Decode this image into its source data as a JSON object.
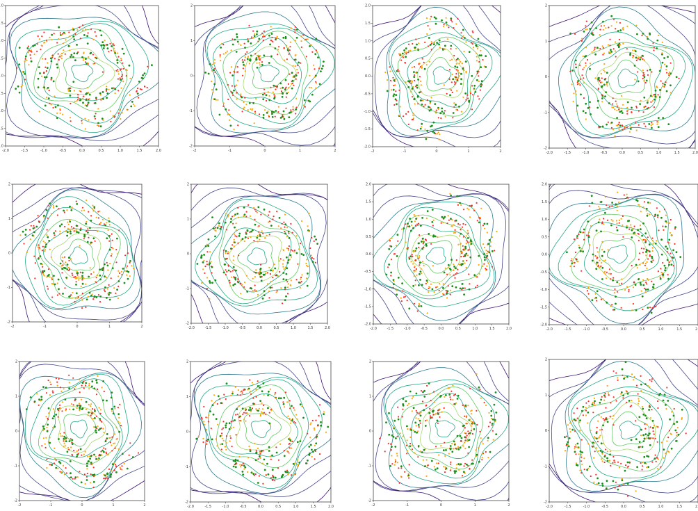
{
  "colors": {
    "real_points": "#ff2a2a",
    "generated_points_a": "#ffa500",
    "generated_points_b": "#1a8f1a",
    "contour_levels": [
      "#3b0f70",
      "#414487",
      "#2a788e",
      "#22a884",
      "#5ec962",
      "#a6d96a",
      "#fde725"
    ]
  },
  "chart_data": [
    {
      "type": "scatter",
      "panel": "r1c1",
      "title": "",
      "xlabel": "",
      "ylabel": "",
      "contours": true,
      "grid": false,
      "xlim": [
        -2.0,
        2.0
      ],
      "ylim": [
        -2.0,
        2.0
      ],
      "xticks": [
        "-2.0",
        "-1.5",
        "-1.0",
        "-0.5",
        "0.0",
        "0.5",
        "1.0",
        "1.5",
        "2.0"
      ],
      "yticks": [
        "-2.0",
        "-1.5",
        "-1.0",
        "-0.5",
        "0.0",
        "0.5",
        "1.0",
        "1.5",
        "2.0"
      ],
      "series": [
        {
          "marker": "real_points"
        },
        {
          "marker": "generated_points_a"
        },
        {
          "marker": "generated_points_b",
          "note_shape": "concentrated arc upper right"
        }
      ]
    },
    {
      "type": "scatter",
      "panel": "r1c2",
      "title": "",
      "xlabel": "",
      "ylabel": "",
      "contours": true,
      "grid": false,
      "xlim": [
        -2.0,
        2.0
      ],
      "ylim": [
        -2.0,
        2.0
      ],
      "xticks": [
        "-2",
        "-1",
        "0",
        "1",
        "2"
      ],
      "yticks": [
        "-2",
        "-1",
        "0",
        "1",
        "2"
      ]
    },
    {
      "type": "scatter",
      "panel": "r1c3",
      "title": "",
      "xlabel": "",
      "ylabel": "",
      "contours": true,
      "grid": false,
      "xlim": [
        -2.0,
        2.0
      ],
      "ylim": [
        -2.0,
        2.0
      ],
      "xticks": [
        "-2",
        "-1",
        "0",
        "1",
        "2"
      ],
      "yticks": [
        "-2.0",
        "-1.5",
        "-1.0",
        "-0.5",
        "0.0",
        "0.5",
        "1.0",
        "1.5",
        "2.0"
      ]
    },
    {
      "type": "scatter",
      "panel": "r1c4",
      "title": "",
      "xlabel": "",
      "ylabel": "",
      "contours": true,
      "grid": false,
      "xlim": [
        -2.0,
        2.0
      ],
      "ylim": [
        -2.0,
        2.0
      ],
      "xticks": [
        "-2.0",
        "-1.5",
        "-1.0",
        "-0.5",
        "0.0",
        "0.5",
        "1.0",
        "1.5",
        "2.0"
      ],
      "yticks": [
        "-2",
        "-1",
        "0",
        "1",
        "2"
      ]
    },
    {
      "type": "scatter",
      "panel": "r2c1",
      "title": "",
      "xlabel": "",
      "ylabel": "",
      "contours": true,
      "grid": false,
      "xlim": [
        -2.0,
        2.0
      ],
      "ylim": [
        -2.0,
        2.0
      ],
      "xticks": [
        "-2",
        "-1",
        "0",
        "1",
        "2"
      ],
      "yticks": [
        "-2",
        "-1",
        "0",
        "1",
        "2"
      ]
    },
    {
      "type": "scatter",
      "panel": "r2c2",
      "title": "",
      "xlabel": "",
      "ylabel": "",
      "contours": true,
      "grid": false,
      "xlim": [
        -2.0,
        2.0
      ],
      "ylim": [
        -2.0,
        2.0
      ],
      "xticks": [
        "-2.0",
        "-1.5",
        "-1.0",
        "-0.5",
        "0.0",
        "0.5",
        "1.0",
        "1.5",
        "2.0"
      ],
      "yticks": [
        "-2",
        "-1",
        "0",
        "1",
        "2"
      ]
    },
    {
      "type": "scatter",
      "panel": "r2c3",
      "title": "",
      "xlabel": "",
      "ylabel": "",
      "contours": true,
      "grid": false,
      "xlim": [
        -2.0,
        2.0
      ],
      "ylim": [
        -2.0,
        2.0
      ],
      "xticks": [
        "-2.0",
        "-1.5",
        "-1.0",
        "-0.5",
        "0.0",
        "0.5",
        "1.0",
        "1.5",
        "2.0"
      ],
      "yticks": [
        "-2.0",
        "-1.5",
        "-1.0",
        "-0.5",
        "0.0",
        "0.5",
        "1.0",
        "1.5",
        "2.0"
      ]
    },
    {
      "type": "scatter",
      "panel": "r2c4",
      "title": "",
      "xlabel": "",
      "ylabel": "",
      "contours": true,
      "grid": false,
      "xlim": [
        -2.0,
        2.0
      ],
      "ylim": [
        -2.0,
        2.0
      ],
      "xticks": [
        "-2.0",
        "-1.5",
        "-1.0",
        "-0.5",
        "0.0",
        "0.5",
        "1.0",
        "1.5",
        "2.0"
      ],
      "yticks": [
        "-2.0",
        "-1.5",
        "-1.0",
        "-0.5",
        "0.0",
        "0.5",
        "1.0",
        "1.5",
        "2.0"
      ]
    },
    {
      "type": "scatter",
      "panel": "r3c1",
      "title": "",
      "xlabel": "",
      "ylabel": "",
      "contours": true,
      "grid": false,
      "xlim": [
        -2.0,
        2.0
      ],
      "ylim": [
        -2.0,
        2.0
      ],
      "xticks": [
        "-2",
        "-1",
        "0",
        "1",
        "2"
      ],
      "yticks": [
        "-2",
        "-1",
        "0",
        "1",
        "2"
      ]
    },
    {
      "type": "scatter",
      "panel": "r3c2",
      "title": "",
      "xlabel": "",
      "ylabel": "",
      "contours": true,
      "grid": false,
      "xlim": [
        -2.0,
        2.0
      ],
      "ylim": [
        -2.0,
        2.0
      ],
      "xticks": [
        "-2.0",
        "-1.5",
        "-1.0",
        "-0.5",
        "0.0",
        "0.5",
        "1.0",
        "1.5",
        "2.0"
      ],
      "yticks": [
        "-2",
        "-1",
        "0",
        "1",
        "2"
      ]
    },
    {
      "type": "scatter",
      "panel": "r3c3",
      "title": "",
      "xlabel": "",
      "ylabel": "",
      "contours": true,
      "grid": false,
      "xlim": [
        -2.0,
        2.0
      ],
      "ylim": [
        -2.0,
        2.0
      ],
      "xticks": [
        "-2",
        "-1",
        "0",
        "1",
        "2"
      ],
      "yticks": [
        "-2",
        "-1",
        "0",
        "1",
        "2"
      ]
    },
    {
      "type": "scatter",
      "panel": "r3c4",
      "title": "",
      "xlabel": "",
      "ylabel": "",
      "contours": true,
      "grid": false,
      "xlim": [
        -2.0,
        2.0
      ],
      "ylim": [
        -2.0,
        2.0
      ],
      "xticks": [
        "-2.0",
        "-1.5",
        "-1.0",
        "-0.5",
        "0.0",
        "0.5",
        "1.0",
        "1.5",
        "2.0"
      ],
      "yticks": [
        "-2",
        "-1",
        "0",
        "1",
        "2"
      ]
    }
  ]
}
